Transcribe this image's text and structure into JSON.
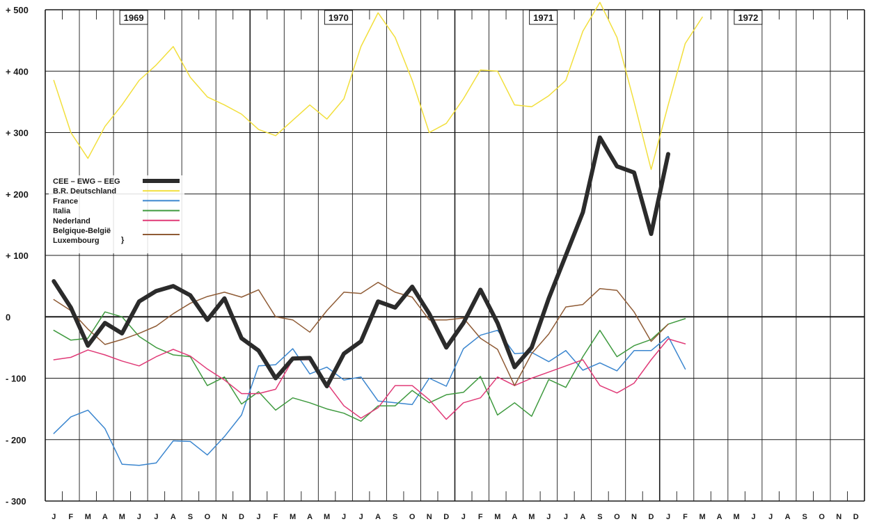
{
  "chart_data": {
    "type": "line",
    "ylim": [
      -300,
      500
    ],
    "y_ticks": [
      {
        "value": 500,
        "label": "+ 500"
      },
      {
        "value": 400,
        "label": "+ 400"
      },
      {
        "value": 300,
        "label": "+ 300"
      },
      {
        "value": 200,
        "label": "+ 200"
      },
      {
        "value": 100,
        "label": "+ 100"
      },
      {
        "value": 0,
        "label": "0"
      },
      {
        "value": -100,
        "label": "- 100"
      },
      {
        "value": -200,
        "label": "- 200"
      },
      {
        "value": -300,
        "label": "- 300"
      }
    ],
    "x_tick_labels": [
      "J",
      "F",
      "M",
      "A",
      "M",
      "J",
      "J",
      "A",
      "S",
      "O",
      "N",
      "D",
      "J",
      "F",
      "M",
      "A",
      "M",
      "J",
      "J",
      "A",
      "S",
      "O",
      "N",
      "D",
      "J",
      "F",
      "M",
      "A",
      "M",
      "J",
      "J",
      "A",
      "S",
      "O",
      "N",
      "D",
      "J",
      "F",
      "M",
      "A",
      "M",
      "J",
      "J",
      "A",
      "S",
      "O",
      "N",
      "D"
    ],
    "years": [
      "1969",
      "1970",
      "1971",
      "1972"
    ],
    "grid": true,
    "legend_position": "left",
    "series": [
      {
        "name": "CEE – EWG – EEG",
        "color": "#2b2b2b",
        "width": 6,
        "values": [
          58,
          15,
          -47,
          -10,
          -27,
          25,
          42,
          50,
          35,
          -5,
          30,
          -35,
          -55,
          -100,
          -68,
          -67,
          -113,
          -60,
          -40,
          25,
          15,
          49,
          5,
          -50,
          -10,
          44,
          -10,
          -82,
          -50,
          30,
          100,
          170,
          292,
          245,
          235,
          135,
          265
        ]
      },
      {
        "name": "B.R. Deutschland",
        "color": "#f2df3c",
        "width": 1.5,
        "values": [
          385,
          300,
          258,
          310,
          345,
          385,
          410,
          440,
          390,
          358,
          345,
          330,
          305,
          295,
          320,
          345,
          322,
          355,
          440,
          495,
          455,
          385,
          300,
          315,
          355,
          402,
          400,
          345,
          342,
          360,
          385,
          465,
          512,
          455,
          350,
          240,
          345,
          445,
          488
        ]
      },
      {
        "name": "France",
        "color": "#3b86cf",
        "width": 1.5,
        "values": [
          -190,
          -163,
          -152,
          -182,
          -240,
          -242,
          -238,
          -202,
          -203,
          -225,
          -195,
          -160,
          -80,
          -78,
          -52,
          -93,
          -82,
          -103,
          -98,
          -137,
          -140,
          -143,
          -100,
          -113,
          -52,
          -30,
          -22,
          -60,
          -58,
          -73,
          -55,
          -87,
          -75,
          -88,
          -55,
          -55,
          -32,
          -85
        ]
      },
      {
        "name": "Italia",
        "color": "#3f9a3f",
        "width": 1.5,
        "values": [
          -22,
          -38,
          -35,
          8,
          0,
          -32,
          -50,
          -62,
          -65,
          -112,
          -98,
          -142,
          -122,
          -152,
          -132,
          -140,
          -150,
          -157,
          -170,
          -145,
          -145,
          -120,
          -140,
          -127,
          -123,
          -97,
          -160,
          -140,
          -162,
          -102,
          -115,
          -65,
          -22,
          -65,
          -47,
          -37,
          -12,
          -3
        ]
      },
      {
        "name": "Nederland",
        "color": "#e03a77",
        "width": 1.5,
        "values": [
          -70,
          -66,
          -54,
          -62,
          -72,
          -80,
          -65,
          -53,
          -64,
          -85,
          -103,
          -125,
          -125,
          -118,
          -70,
          -70,
          -108,
          -145,
          -165,
          -148,
          -112,
          -112,
          -135,
          -167,
          -140,
          -132,
          -98,
          -112,
          -100,
          -90,
          -80,
          -70,
          -112,
          -124,
          -108,
          -70,
          -36,
          -44
        ]
      },
      {
        "name": "Belgique-België / Luxembourg",
        "color": "#8f5b35",
        "width": 1.5,
        "values": [
          28,
          10,
          -20,
          -45,
          -37,
          -27,
          -15,
          5,
          22,
          33,
          40,
          32,
          44,
          0,
          -5,
          -25,
          10,
          40,
          38,
          56,
          40,
          32,
          -5,
          -5,
          -2,
          -35,
          -53,
          -112,
          -60,
          -28,
          16,
          20,
          46,
          43,
          8,
          -40,
          -12
        ]
      }
    ],
    "legend": {
      "lines": [
        "CEE – EWG – EEG",
        "B.R. Deutschland",
        "France",
        "Italia",
        "Nederland",
        "Belgique-België",
        "Luxembourg"
      ],
      "brace": "}"
    }
  }
}
